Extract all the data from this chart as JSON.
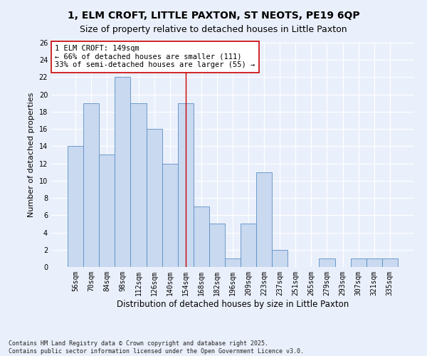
{
  "title_line1": "1, ELM CROFT, LITTLE PAXTON, ST NEOTS, PE19 6QP",
  "title_line2": "Size of property relative to detached houses in Little Paxton",
  "xlabel": "Distribution of detached houses by size in Little Paxton",
  "ylabel": "Number of detached properties",
  "bar_labels": [
    "56sqm",
    "70sqm",
    "84sqm",
    "98sqm",
    "112sqm",
    "126sqm",
    "140sqm",
    "154sqm",
    "168sqm",
    "182sqm",
    "196sqm",
    "209sqm",
    "223sqm",
    "237sqm",
    "251sqm",
    "265sqm",
    "279sqm",
    "293sqm",
    "307sqm",
    "321sqm",
    "335sqm"
  ],
  "bar_values": [
    14,
    19,
    13,
    22,
    19,
    16,
    12,
    19,
    7,
    5,
    1,
    5,
    11,
    2,
    0,
    0,
    1,
    0,
    1,
    1,
    1
  ],
  "bar_color": "#c9d9f0",
  "bar_edge_color": "#5b8ec5",
  "vline_index": 7,
  "vline_color": "#cc0000",
  "annotation_text": "1 ELM CROFT: 149sqm\n← 66% of detached houses are smaller (111)\n33% of semi-detached houses are larger (55) →",
  "annotation_box_color": "#ffffff",
  "annotation_box_edge": "#cc0000",
  "annotation_fontsize": 7.5,
  "footer_text": "Contains HM Land Registry data © Crown copyright and database right 2025.\nContains public sector information licensed under the Open Government Licence v3.0.",
  "ylim": [
    0,
    26
  ],
  "yticks": [
    0,
    2,
    4,
    6,
    8,
    10,
    12,
    14,
    16,
    18,
    20,
    22,
    24,
    26
  ],
  "bg_color": "#eaf0fb",
  "grid_color": "#ffffff",
  "title_fontsize": 10,
  "subtitle_fontsize": 9,
  "axis_label_fontsize": 8.5,
  "tick_fontsize": 7,
  "ylabel_fontsize": 8
}
